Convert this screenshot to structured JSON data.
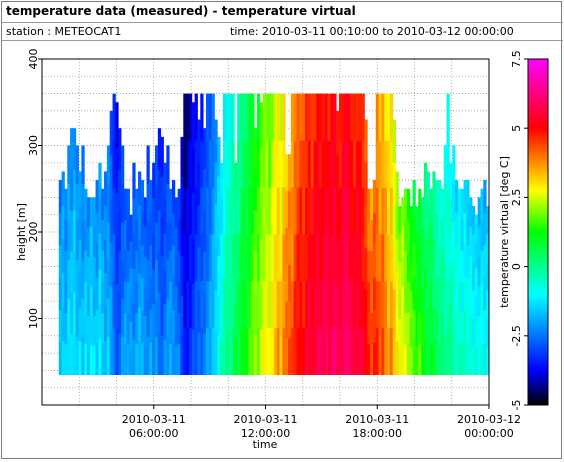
{
  "header": {
    "title": "temperature data (measured) - temperature virtual",
    "station": "station : METEOCAT1",
    "time_range": "time: 2010-03-11 00:10:00 to 2010-03-12 00:00:00"
  },
  "chart_data": {
    "type": "heatmap",
    "xlabel": "time",
    "ylabel": "height [m]",
    "colorbar_label": "temperature virtual [deg C]",
    "xlim_hours": [
      0,
      24
    ],
    "ylim": [
      0,
      400
    ],
    "x_ticks": [
      {
        "hours": 6,
        "label_date": "2010-03-11",
        "label_time": "06:00:00"
      },
      {
        "hours": 12,
        "label_date": "2010-03-11",
        "label_time": "12:00:00"
      },
      {
        "hours": 18,
        "label_date": "2010-03-11",
        "label_time": "18:00:00"
      },
      {
        "hours": 24,
        "label_date": "2010-03-12",
        "label_time": "00:00:00"
      }
    ],
    "y_ticks": [
      100,
      200,
      300,
      400
    ],
    "colorbar_range": [
      -5,
      7.5
    ],
    "colorbar_ticks": [
      "-5",
      "-2.5",
      "0",
      "2.5",
      "5",
      "7.5"
    ],
    "grid": true,
    "data_bottom_height": 35,
    "profile_top_heights": [
      260,
      270,
      250,
      300,
      320,
      320,
      300,
      270,
      300,
      250,
      240,
      240,
      240,
      260,
      280,
      250,
      270,
      300,
      340,
      360,
      350,
      320,
      300,
      250,
      250,
      220,
      280,
      250,
      270,
      260,
      240,
      300,
      260,
      280,
      300,
      320,
      310,
      280,
      300,
      250,
      260,
      240,
      250,
      310,
      360,
      360,
      360,
      350,
      360,
      330,
      360,
      320,
      360,
      360,
      360,
      330,
      310,
      280,
      360,
      360,
      360,
      360,
      280,
      360,
      360,
      360,
      360,
      360,
      360,
      320,
      360,
      350,
      360,
      360,
      360,
      360,
      360,
      360,
      360,
      360,
      290,
      290,
      360,
      360,
      360,
      360,
      360,
      360,
      360,
      360,
      360,
      360,
      360,
      360,
      360,
      360,
      360,
      360,
      340,
      360,
      360,
      360,
      360,
      360,
      360,
      360,
      360,
      360,
      330,
      250,
      250,
      260,
      360,
      360,
      360,
      360,
      360,
      360,
      330,
      270,
      230,
      240,
      250,
      250,
      230,
      260,
      230,
      250,
      240,
      280,
      270,
      250,
      270,
      260,
      260,
      250,
      300,
      360,
      280,
      300,
      260,
      250,
      250,
      260,
      260,
      240,
      230,
      220,
      240,
      250,
      260,
      230
    ],
    "profile_mean_temperature": [
      -1.5,
      -1.3,
      -1.6,
      -1.2,
      -1.4,
      -1.1,
      -1.5,
      -1.3,
      -1.6,
      -1.2,
      -1.4,
      -1.0,
      -1.3,
      -1.5,
      -1.1,
      -1.4,
      -1.7,
      -1.5,
      -2.0,
      -2.5,
      -2.8,
      -2.6,
      -2.2,
      -1.9,
      -2.0,
      -1.8,
      -2.1,
      -1.9,
      -1.7,
      -1.8,
      -2.0,
      -2.2,
      -2.0,
      -2.3,
      -2.1,
      -2.4,
      -2.6,
      -2.3,
      -2.1,
      -1.9,
      -2.0,
      -2.2,
      -2.4,
      -3.0,
      -3.6,
      -3.4,
      -3.2,
      -3.0,
      -2.8,
      -2.6,
      -2.5,
      -2.3,
      -2.1,
      -1.9,
      -1.6,
      -1.2,
      -0.8,
      -0.5,
      -0.2,
      0.2,
      0.0,
      0.4,
      0.8,
      0.6,
      1.0,
      1.3,
      1.1,
      1.6,
      1.9,
      2.2,
      2.0,
      2.5,
      2.7,
      2.9,
      2.6,
      3.1,
      3.4,
      3.7,
      3.3,
      3.9,
      4.2,
      4.5,
      4.3,
      4.8,
      5.0,
      5.2,
      5.0,
      5.4,
      5.6,
      5.3,
      5.7,
      5.9,
      5.6,
      5.8,
      6.0,
      5.7,
      5.9,
      6.1,
      5.8,
      5.6,
      6.0,
      6.2,
      5.9,
      5.7,
      5.5,
      5.8,
      5.6,
      5.3,
      5.1,
      4.8,
      4.5,
      4.9,
      4.6,
      4.2,
      4.4,
      4.0,
      3.6,
      3.8,
      3.3,
      3.0,
      2.7,
      2.9,
      2.5,
      2.2,
      2.0,
      1.8,
      1.5,
      1.7,
      1.3,
      1.0,
      0.8,
      1.1,
      0.7,
      0.5,
      0.2,
      0.4,
      0.0,
      -0.2,
      0.1,
      -0.3,
      -0.5,
      -0.2,
      -0.6,
      -0.4,
      -0.7,
      -0.5,
      -0.8,
      -0.6,
      -0.9,
      -0.7,
      -1.0,
      -0.8
    ]
  }
}
